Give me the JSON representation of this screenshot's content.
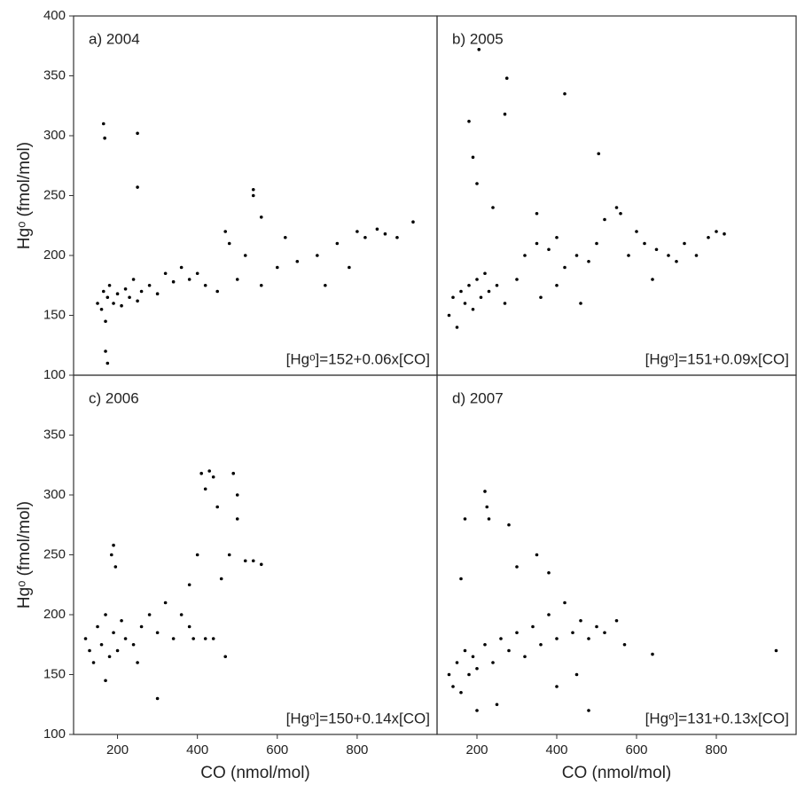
{
  "chart_data": [
    {
      "type": "scatter",
      "title": "a) 2004",
      "annotation": "[Hgᵒ]=152+0.06x[CO]",
      "ylabel": "Hgᵒ (fmol/mol)",
      "color": "#000000",
      "xlim": [
        90,
        1000
      ],
      "ylim": [
        100,
        400
      ],
      "yticks": [
        100,
        150,
        200,
        250,
        300,
        350,
        400
      ],
      "x": [
        150,
        160,
        165,
        170,
        175,
        180,
        190,
        200,
        210,
        220,
        230,
        240,
        250,
        260,
        280,
        300,
        320,
        340,
        360,
        380,
        400,
        420,
        450,
        480,
        500,
        520,
        540,
        560,
        600,
        620,
        650,
        700,
        720,
        750,
        780,
        800,
        820,
        850,
        870,
        900,
        940,
        165,
        168,
        250,
        250,
        170,
        175,
        540,
        560,
        470
      ],
      "y": [
        160,
        155,
        170,
        145,
        165,
        175,
        160,
        168,
        158,
        172,
        165,
        180,
        162,
        170,
        175,
        168,
        185,
        178,
        190,
        180,
        185,
        175,
        170,
        210,
        180,
        200,
        250,
        175,
        190,
        215,
        195,
        200,
        175,
        210,
        190,
        220,
        215,
        222,
        218,
        215,
        228,
        310,
        298,
        302,
        257,
        120,
        110,
        255,
        232,
        220
      ]
    },
    {
      "type": "scatter",
      "title": "b) 2005",
      "annotation": "[Hgᵒ]=151+0.09x[CO]",
      "color": "#000000",
      "xlim": [
        100,
        1000
      ],
      "ylim": [
        100,
        400
      ],
      "x": [
        130,
        140,
        150,
        160,
        170,
        180,
        190,
        200,
        210,
        220,
        230,
        250,
        270,
        300,
        320,
        350,
        380,
        400,
        420,
        450,
        480,
        500,
        520,
        550,
        580,
        600,
        620,
        650,
        680,
        700,
        720,
        750,
        780,
        800,
        820,
        205,
        275,
        420,
        270,
        180,
        505,
        190,
        200,
        240,
        350,
        360,
        400,
        460,
        560,
        640
      ],
      "y": [
        150,
        165,
        140,
        170,
        160,
        175,
        155,
        180,
        165,
        185,
        170,
        175,
        160,
        180,
        200,
        210,
        205,
        215,
        190,
        200,
        195,
        210,
        230,
        240,
        200,
        220,
        210,
        205,
        200,
        195,
        210,
        200,
        215,
        220,
        218,
        372,
        348,
        335,
        318,
        312,
        285,
        282,
        260,
        240,
        235,
        165,
        175,
        160,
        235,
        180
      ]
    },
    {
      "type": "scatter",
      "title": "c) 2006",
      "annotation": "[Hgᵒ]=150+0.14x[CO]",
      "ylabel": "Hgᵒ (fmol/mol)",
      "xlabel": "CO (nmol/mol)",
      "color": "#000000",
      "xlim": [
        90,
        1000
      ],
      "ylim": [
        100,
        400
      ],
      "yticks": [
        100,
        150,
        200,
        250,
        300,
        350
      ],
      "xticks": [
        200,
        400,
        600,
        800
      ],
      "x": [
        120,
        130,
        140,
        150,
        160,
        170,
        180,
        190,
        200,
        210,
        220,
        240,
        260,
        280,
        300,
        320,
        340,
        360,
        380,
        400,
        420,
        440,
        460,
        480,
        500,
        520,
        540,
        560,
        185,
        190,
        195,
        410,
        430,
        490,
        500,
        450,
        470,
        380,
        420,
        300,
        250,
        170,
        440,
        390
      ],
      "y": [
        180,
        170,
        160,
        190,
        175,
        200,
        165,
        185,
        170,
        195,
        180,
        175,
        190,
        200,
        185,
        210,
        180,
        200,
        225,
        250,
        305,
        315,
        230,
        250,
        280,
        245,
        245,
        242,
        250,
        258,
        240,
        318,
        320,
        318,
        300,
        290,
        165,
        190,
        180,
        130,
        160,
        145,
        180,
        180
      ]
    },
    {
      "type": "scatter",
      "title": "d) 2007",
      "annotation": "[Hgᵒ]=131+0.13x[CO]",
      "xlabel": "CO (nmol/mol)",
      "color": "#000000",
      "xlim": [
        100,
        1000
      ],
      "ylim": [
        100,
        400
      ],
      "xticks": [
        200,
        400,
        600,
        800
      ],
      "x": [
        130,
        140,
        150,
        160,
        170,
        180,
        190,
        200,
        220,
        240,
        260,
        280,
        300,
        320,
        340,
        360,
        380,
        400,
        420,
        440,
        460,
        480,
        500,
        520,
        550,
        570,
        640,
        950,
        220,
        225,
        230,
        280,
        170,
        300,
        350,
        200,
        250,
        400,
        450,
        480,
        160,
        380
      ],
      "y": [
        150,
        140,
        160,
        135,
        170,
        150,
        165,
        155,
        175,
        160,
        180,
        170,
        185,
        165,
        190,
        175,
        200,
        180,
        210,
        185,
        195,
        180,
        190,
        185,
        195,
        175,
        167,
        170,
        303,
        290,
        280,
        275,
        280,
        240,
        250,
        120,
        125,
        140,
        150,
        120,
        230,
        235
      ]
    }
  ]
}
